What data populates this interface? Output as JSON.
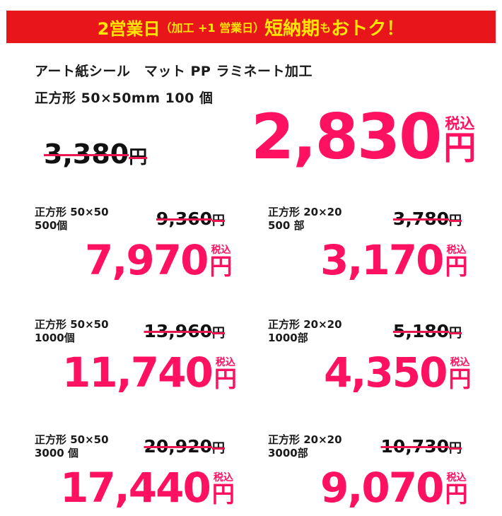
{
  "banner": {
    "part1": "2営業日",
    "part2": "（加工 +1 営業日）",
    "part3": "短納期",
    "part4": "も",
    "part5": "おトク！"
  },
  "product": {
    "line1": "アート紙シール　マット PP ラミネート加工",
    "line2": "正方形 50×50mm  100 個"
  },
  "main": {
    "old_price": "3,380",
    "old_unit": "円",
    "price": "2,830",
    "tax": "税込",
    "unit": "円"
  },
  "offers": [
    {
      "spec1": "正方形 50×50",
      "spec2": " 500個",
      "old_price": "9,360",
      "price": "7,970"
    },
    {
      "spec1": "正方形 20×20",
      "spec2": "500 部",
      "old_price": "3,780",
      "price": "3,170"
    },
    {
      "spec1": "正方形 50×50",
      "spec2": "1000個",
      "old_price": "13,960",
      "price": "11,740"
    },
    {
      "spec1": "正方形 20×20",
      "spec2": "1000部",
      "old_price": "5,180",
      "price": "4,350"
    },
    {
      "spec1": "正方形 50×50",
      "spec2": "3000 個",
      "old_price": "20,920",
      "price": "17,440"
    },
    {
      "spec1": "正方形 20×20",
      "spec2": "3000部",
      "old_price": "10,730",
      "price": "9,070"
    }
  ],
  "labels": {
    "tax": "税込",
    "yen": "円"
  },
  "colors": {
    "banner_bg": "#e8151b",
    "banner_text": "#ffe600",
    "price": "#ff1162",
    "strike": "#e8174f"
  }
}
